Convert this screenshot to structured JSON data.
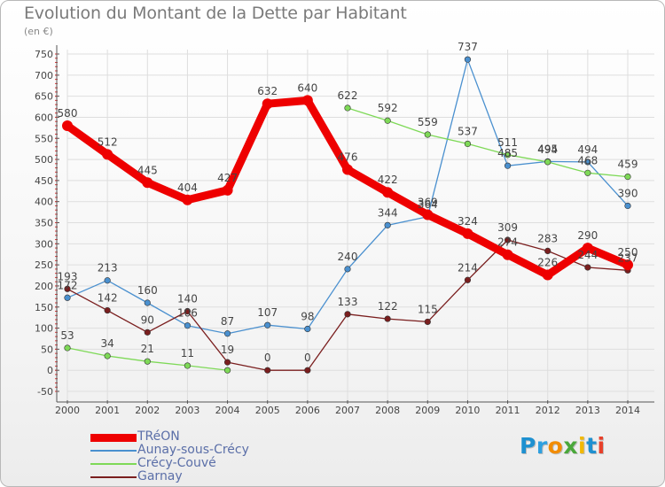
{
  "title": "Evolution du Montant de la Dette par Habitant",
  "unit_label": "(en €)",
  "logo": {
    "letters": [
      "P",
      "r",
      "o",
      "x",
      "i",
      "t",
      "i"
    ],
    "colors": [
      "#1e90d0",
      "#2ea0e0",
      "#f28c00",
      "#4aa83a",
      "#f2b800",
      "#1e90d0",
      "#e8402a"
    ]
  },
  "chart_data": {
    "type": "line",
    "x": [
      "2000",
      "2001",
      "2002",
      "2003",
      "2004",
      "2005",
      "2006",
      "2007",
      "2008",
      "2009",
      "2010",
      "2011",
      "2012",
      "2013",
      "2014"
    ],
    "ylim": [
      -50,
      750
    ],
    "yticks": [
      -50,
      0,
      50,
      100,
      150,
      200,
      250,
      300,
      350,
      400,
      450,
      500,
      550,
      600,
      650,
      700,
      750
    ],
    "grid": true,
    "legend_position": "bottom-left",
    "series": [
      {
        "name": "TRéON",
        "color": "#ee0000",
        "values": [
          580,
          512,
          445,
          404,
          427,
          632,
          640,
          476,
          422,
          369,
          324,
          274,
          226,
          290,
          250
        ],
        "labels": [
          "580",
          "512",
          "445",
          "404",
          "427",
          "632",
          "640",
          "476",
          "422",
          "369",
          "324",
          "274",
          "226",
          "290",
          "250"
        ]
      },
      {
        "name": "Aunay-sous-Crécy",
        "color": "#4a90cf",
        "values": [
          172,
          213,
          160,
          106,
          87,
          107,
          98,
          240,
          344,
          364,
          737,
          485,
          495,
          494,
          390
        ],
        "labels": [
          "172",
          "213",
          "160",
          "106",
          "87",
          "107",
          "98",
          "240",
          "344",
          "364",
          "737",
          "485",
          "495",
          "494",
          "390"
        ]
      },
      {
        "name": "Crécy-Couvé",
        "color": "#7ed957",
        "values": [
          53,
          34,
          21,
          11,
          0,
          null,
          null,
          622,
          592,
          559,
          537,
          511,
          494,
          468,
          459
        ],
        "labels": [
          "53",
          "34",
          "21",
          "11",
          "",
          "",
          "",
          "622",
          "592",
          "559",
          "537",
          "511",
          "494",
          "468",
          "459"
        ]
      },
      {
        "name": "Garnay",
        "color": "#7a1e1e",
        "values": [
          193,
          142,
          90,
          140,
          19,
          0,
          0,
          133,
          122,
          115,
          214,
          309,
          283,
          244,
          237
        ],
        "labels": [
          "193",
          "142",
          "90",
          "140",
          "19",
          "0",
          "0",
          "133",
          "122",
          "115",
          "214",
          "309",
          "283",
          "244",
          "237"
        ]
      }
    ]
  }
}
